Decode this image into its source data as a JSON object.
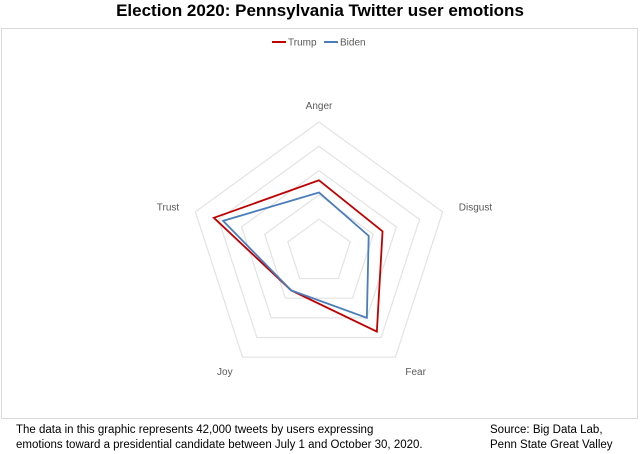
{
  "chart_data": {
    "type": "radar",
    "title": "Election 2020: Pennsylvania Twitter user emotions",
    "axes": [
      "Anger",
      "Disgust",
      "Fear",
      "Joy",
      "Trust"
    ],
    "rmax": 5,
    "rings": 5,
    "legend_position": "top",
    "series": [
      {
        "name": "Trump",
        "color": "#c00000",
        "values": [
          2.6,
          2.4,
          3.7,
          1.6,
          4.2
        ]
      },
      {
        "name": "Biden",
        "color": "#4a7ebb",
        "values": [
          2.1,
          1.8,
          3.0,
          1.6,
          3.8
        ]
      }
    ]
  },
  "footer": {
    "note_line1": "The data in this graphic represents 42,000 tweets by users expressing",
    "note_line2": "emotions toward a presidential candidate between July 1 and October 30, 2020.",
    "source_line1": "Source: Big Data Lab,",
    "source_line2": "Penn State Great Valley"
  }
}
